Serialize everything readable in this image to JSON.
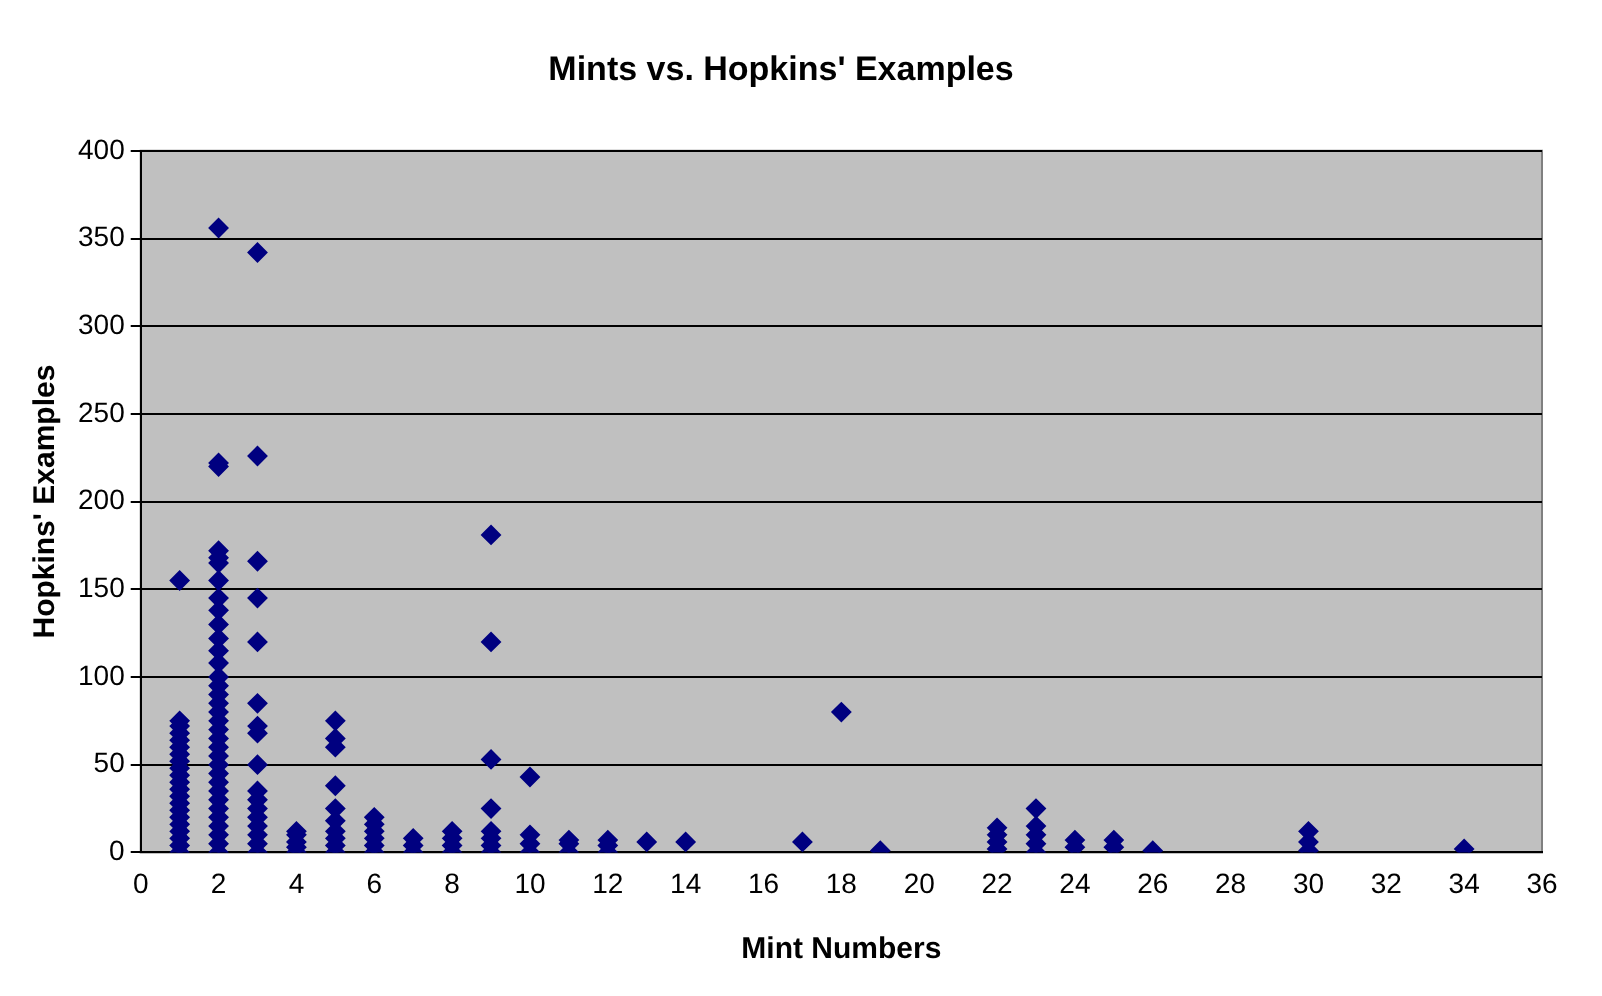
{
  "chart_data": {
    "type": "scatter",
    "title": "Mints vs. Hopkins' Examples",
    "xlabel": "Mint Numbers",
    "ylabel": "Hopkins' Examples",
    "xlim": [
      0,
      36
    ],
    "xticks": [
      0,
      2,
      4,
      6,
      8,
      10,
      12,
      14,
      16,
      18,
      20,
      22,
      24,
      26,
      28,
      30,
      32,
      34,
      36
    ],
    "ylim": [
      0,
      400
    ],
    "yticks": [
      0,
      50,
      100,
      150,
      200,
      250,
      300,
      350,
      400
    ],
    "grid": "y",
    "legend": false,
    "marker": "diamond",
    "series": [
      {
        "color": "#000080",
        "x": [
          1,
          1,
          1,
          1,
          1,
          1,
          1,
          1,
          1,
          1,
          1,
          1,
          1,
          1,
          1,
          1,
          1,
          1,
          1,
          1,
          1,
          2,
          2,
          2,
          2,
          2,
          2,
          2,
          2,
          2,
          2,
          2,
          2,
          2,
          2,
          2,
          2,
          2,
          2,
          2,
          2,
          2,
          2,
          2,
          2,
          2,
          2,
          2,
          2,
          2,
          2,
          2,
          2,
          2,
          2,
          3,
          3,
          3,
          3,
          3,
          3,
          3,
          3,
          3,
          3,
          3,
          3,
          3,
          3,
          3,
          3,
          3,
          4,
          4,
          4,
          4,
          4,
          5,
          5,
          5,
          5,
          5,
          5,
          5,
          5,
          5,
          5,
          6,
          6,
          6,
          6,
          6,
          6,
          7,
          7,
          7,
          8,
          8,
          8,
          8,
          9,
          9,
          9,
          9,
          9,
          9,
          9,
          9,
          10,
          10,
          10,
          10,
          11,
          11,
          11,
          12,
          12,
          12,
          13,
          14,
          17,
          18,
          19,
          22,
          22,
          22,
          22,
          23,
          23,
          23,
          23,
          23,
          24,
          24,
          25,
          25,
          26,
          30,
          30,
          30,
          34
        ],
        "values": [
          155,
          75,
          72,
          68,
          64,
          60,
          56,
          52,
          48,
          44,
          40,
          36,
          32,
          28,
          24,
          20,
          16,
          12,
          8,
          4,
          0,
          356,
          222,
          220,
          172,
          168,
          165,
          155,
          145,
          138,
          130,
          122,
          115,
          108,
          100,
          95,
          90,
          85,
          80,
          75,
          70,
          65,
          60,
          55,
          50,
          45,
          40,
          35,
          30,
          25,
          20,
          15,
          10,
          5,
          0,
          342,
          226,
          166,
          145,
          120,
          85,
          72,
          68,
          50,
          35,
          30,
          25,
          20,
          15,
          10,
          5,
          0,
          12,
          10,
          6,
          3,
          0,
          75,
          65,
          60,
          38,
          25,
          18,
          12,
          8,
          4,
          0,
          20,
          16,
          12,
          8,
          4,
          0,
          8,
          4,
          0,
          12,
          8,
          4,
          0,
          181,
          120,
          53,
          25,
          12,
          8,
          4,
          0,
          43,
          10,
          5,
          0,
          7,
          5,
          0,
          7,
          4,
          0,
          6,
          6,
          6,
          80,
          1,
          14,
          10,
          6,
          2,
          25,
          15,
          10,
          5,
          0,
          7,
          3,
          7,
          3,
          1,
          12,
          6,
          1,
          2
        ]
      }
    ]
  }
}
